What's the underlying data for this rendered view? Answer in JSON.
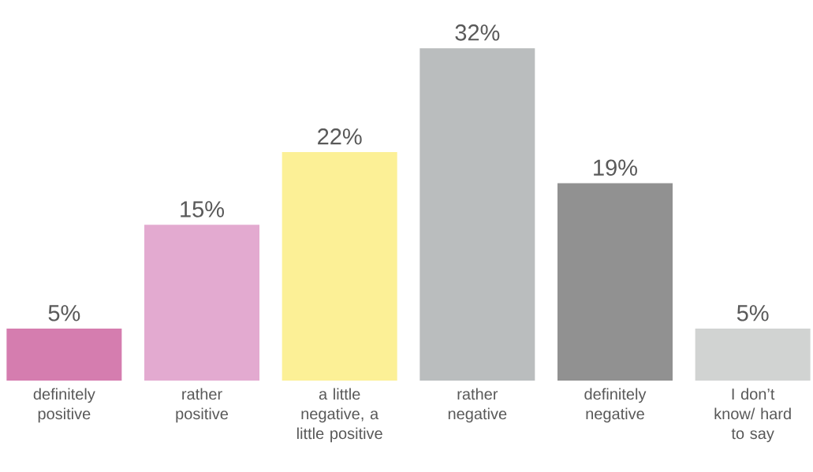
{
  "chart_data": {
    "type": "bar",
    "categories": [
      "definitely positive",
      "rather positive",
      "a little negative, a little positive",
      "rather negative",
      "definitely negative",
      "I don’t know/ hard to say"
    ],
    "values": [
      5,
      15,
      22,
      32,
      19,
      5
    ],
    "value_labels": [
      "5%",
      "15%",
      "22%",
      "32%",
      "19%",
      "5%"
    ],
    "colors": [
      "#d57daf",
      "#e3aad0",
      "#fcf096",
      "#babdbe",
      "#919191",
      "#d1d3d2"
    ]
  }
}
